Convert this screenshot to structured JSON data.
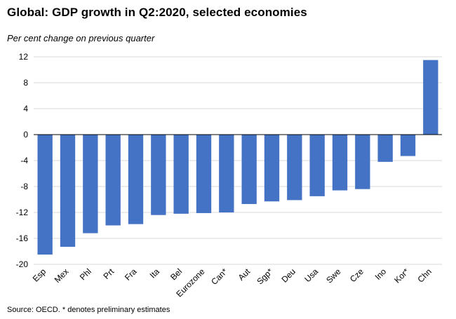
{
  "title": "Global: GDP growth in Q2:2020, selected economies",
  "subtitle": "Per cent change on previous quarter",
  "source": "Source: OECD. * denotes preliminary estimates",
  "chart_data": {
    "type": "bar",
    "title": "Global: GDP growth in Q2:2020, selected economies",
    "ylabel": "Per cent change on previous quarter",
    "xlabel": "",
    "categories": [
      "Esp",
      "Mex",
      "Phl",
      "Prt",
      "Fra",
      "Ita",
      "Bel",
      "Eurozone",
      "Can*",
      "Aut",
      "Sgp*",
      "Deu",
      "Usa",
      "Swe",
      "Cze",
      "Ino",
      "Kor*",
      "Chn"
    ],
    "values": [
      -18.5,
      -17.3,
      -15.2,
      -14.0,
      -13.8,
      -12.4,
      -12.2,
      -12.1,
      -12.0,
      -10.7,
      -10.3,
      -10.1,
      -9.5,
      -8.6,
      -8.4,
      -4.2,
      -3.3,
      11.5
    ],
    "ylim": [
      -20,
      12
    ],
    "yticks": [
      12,
      8,
      4,
      0,
      -4,
      -8,
      -12,
      -16,
      -20
    ],
    "grid": true,
    "bar_color": "#4472C4"
  }
}
